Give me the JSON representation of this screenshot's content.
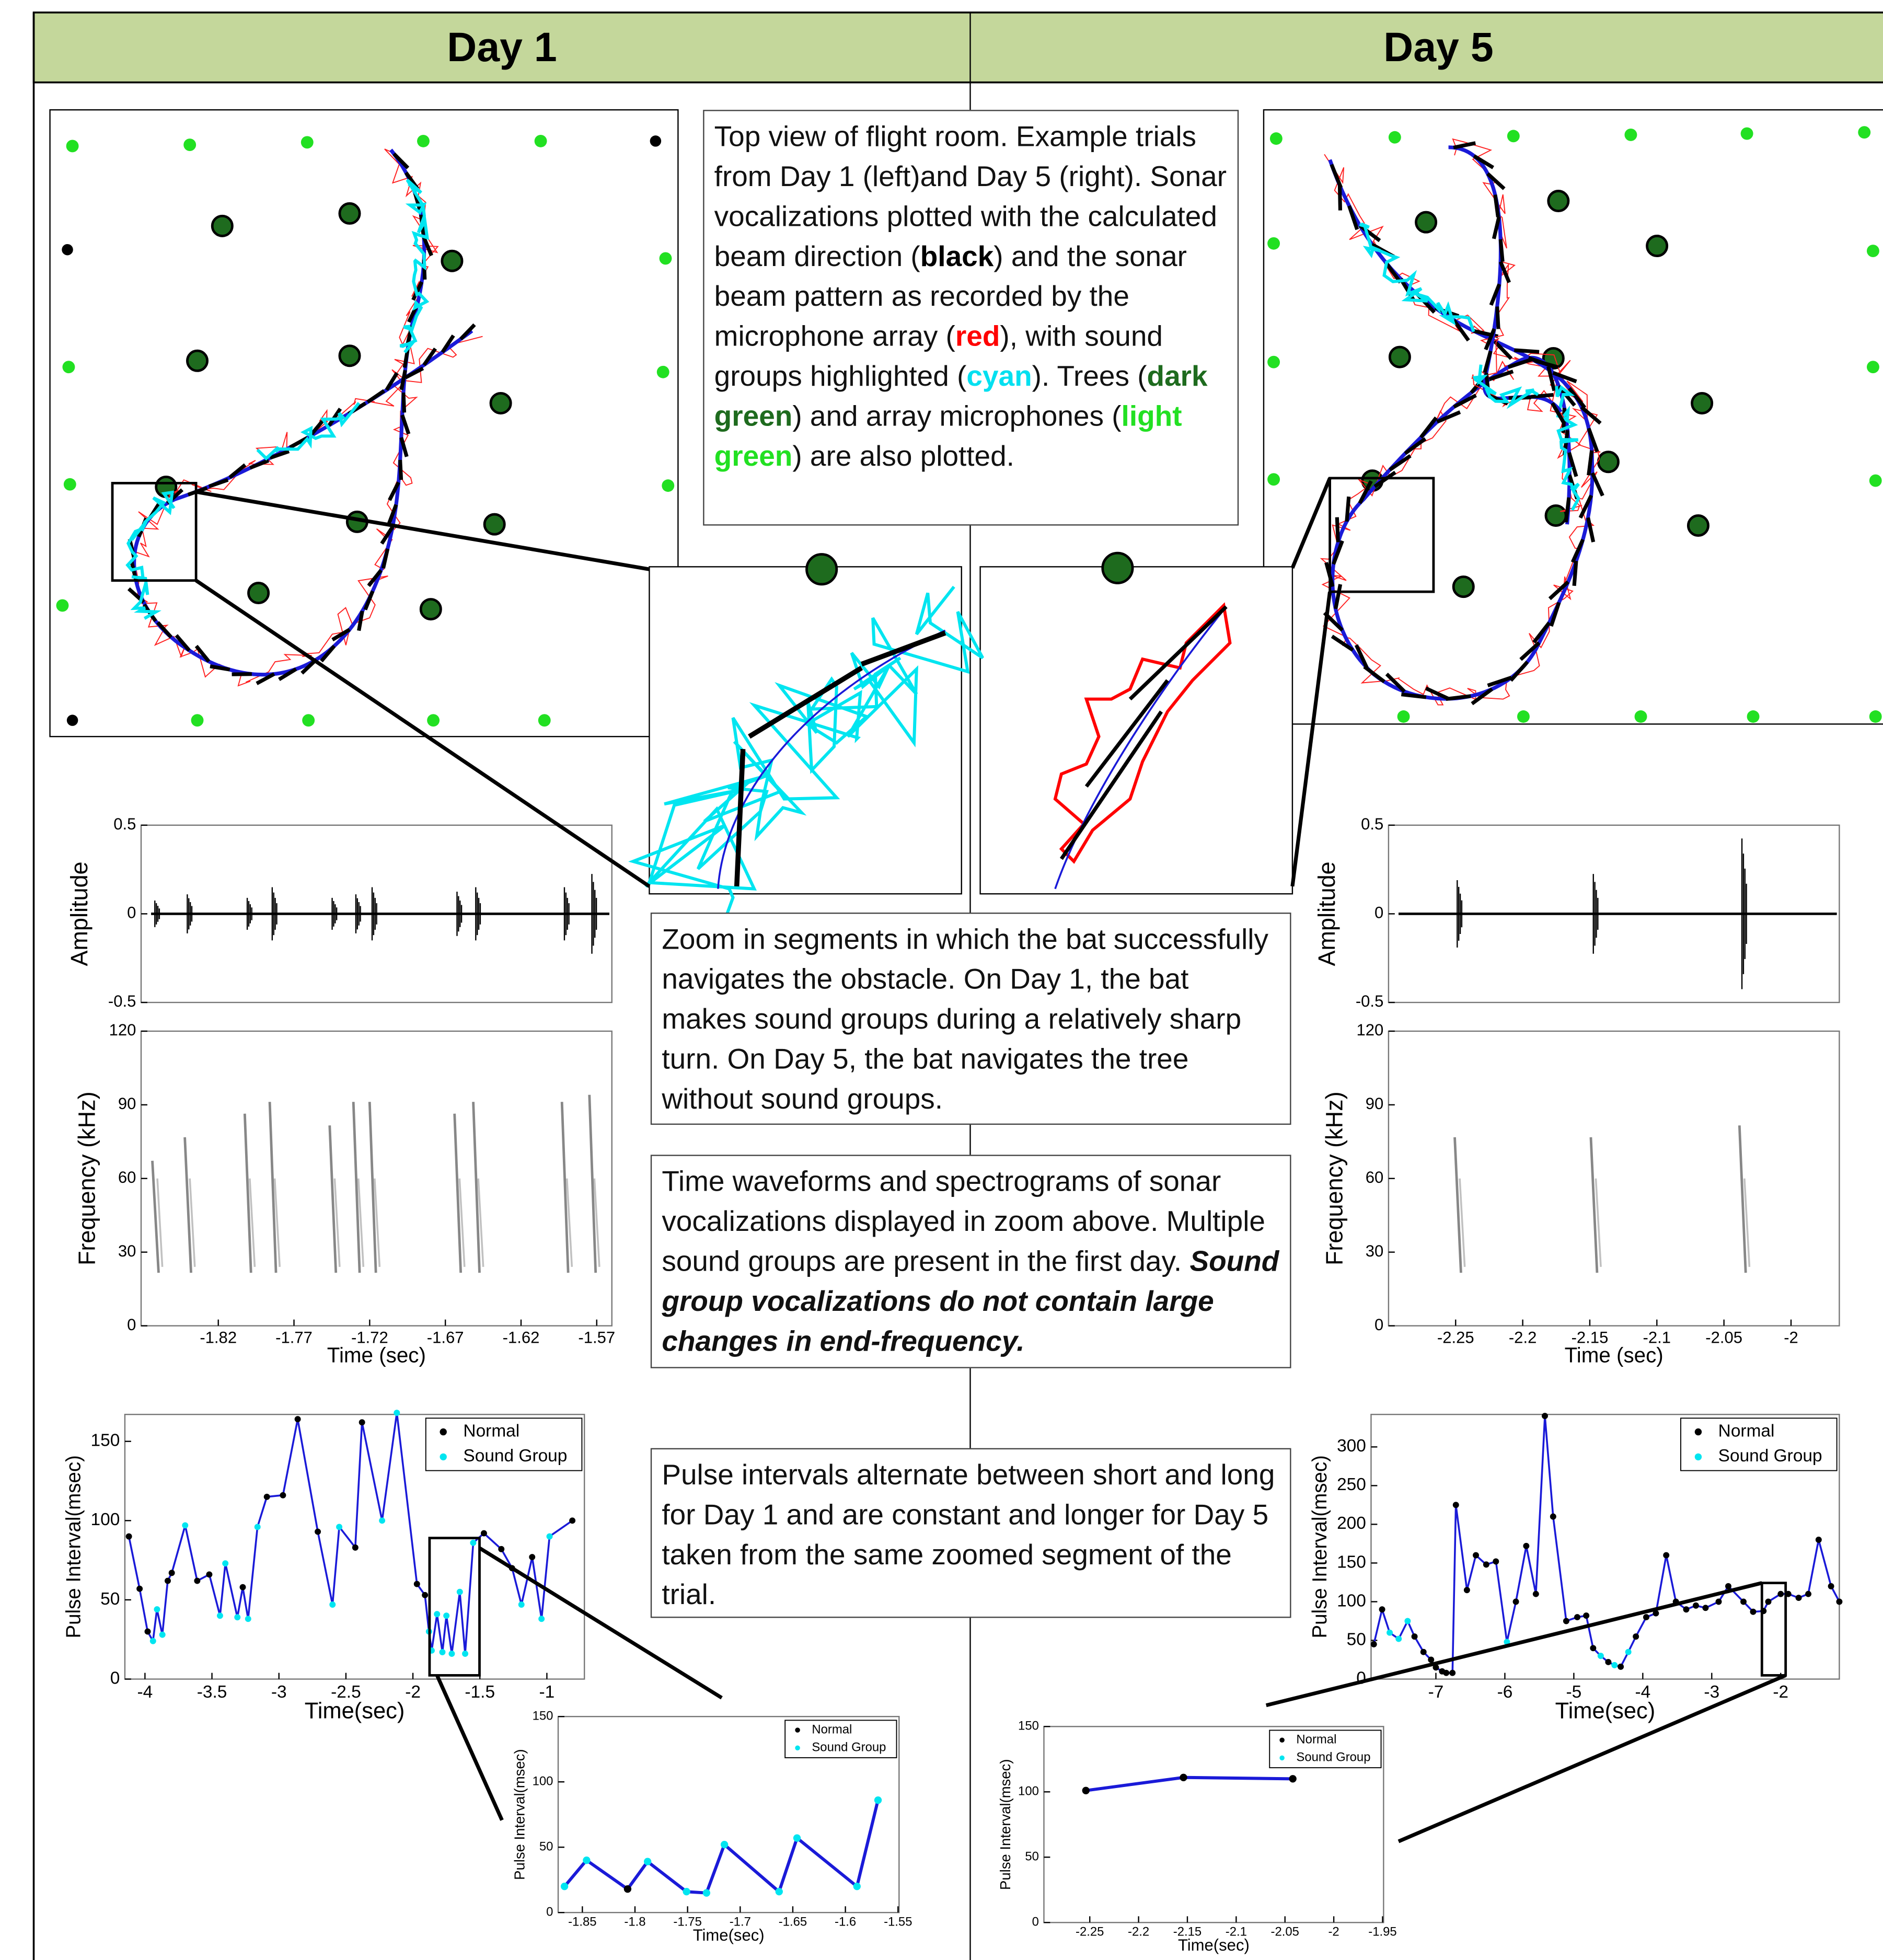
{
  "header": [
    "Day 1",
    "Day 5"
  ],
  "notes": [
    [
      {
        "text": "Top view of flight room.  Example trials from Day 1 (left)and Day 5 (right).  Sonar vocalizations plotted with the calculated beam direction ("
      },
      {
        "text": "black",
        "bold": true,
        "color": "#000000"
      },
      {
        "text": ") and the sonar beam pattern as recorded by the microphone array ("
      },
      {
        "text": "red",
        "bold": true,
        "color": "#ff0000"
      },
      {
        "text": "), with sound groups highlighted ("
      },
      {
        "text": "cyan",
        "bold": true,
        "color": "#00e0f0"
      },
      {
        "text": ").  Trees ("
      },
      {
        "text": "dark green",
        "bold": true,
        "color": "#1e6b1e"
      },
      {
        "text": ") and array microphones ("
      },
      {
        "text": "light green",
        "bold": true,
        "color": "#22e022"
      },
      {
        "text": ") are also plotted."
      }
    ],
    [
      {
        "text": "Zoom in segments in which the bat successfully navigates the obstacle.  On Day 1, the bat makes sound groups during a relatively sharp turn.  On Day 5, the bat navigates the tree without sound groups."
      }
    ],
    [
      {
        "text": "Time waveforms and spectrograms of sonar vocalizations displayed in zoom above. Multiple sound groups are present in the first day.  "
      },
      {
        "text": "Sound group vocalizations do not contain large changes in end-frequency.",
        "bold": true,
        "italic": true
      }
    ],
    [
      {
        "text": "Pulse intervals alternate between short and long for Day 1 and are constant and longer for Day 5 taken from the same zoomed segment of the trial."
      }
    ]
  ],
  "chart_data": [
    {
      "type": "waveform",
      "ylabel": "Amplitude",
      "ylim": [
        -0.5,
        0.5
      ],
      "yticks": [
        -0.5,
        0,
        0.5
      ]
    },
    {
      "type": "spectrogram",
      "xlabel": "Time (sec)",
      "ylabel": "Frequency (kHz)",
      "xlim": [
        -1.871,
        -1.56
      ],
      "xticks": [
        -1.82,
        -1.77,
        -1.72,
        -1.67,
        -1.62,
        -1.57
      ],
      "ylim": [
        0,
        120
      ],
      "yticks": [
        0,
        30,
        60,
        90,
        120
      ]
    },
    {
      "type": "line",
      "xlabel": "Time(sec)",
      "ylabel": "Pulse Interval(msec)",
      "xlim": [
        -4.15,
        -0.72
      ],
      "xticks": [
        -4,
        -3.5,
        -3,
        -2.5,
        -2,
        -1.5,
        -1
      ],
      "ylim": [
        0,
        167
      ],
      "yticks": [
        0,
        50,
        100,
        150
      ],
      "line_color": "#1a1ad8",
      "legend_loc": "upper right",
      "legend": [
        {
          "name": "Normal",
          "color": "#000000"
        },
        {
          "name": "Sound Group",
          "color": "#00e5f0"
        }
      ],
      "x": [
        -4.12,
        -4.04,
        -3.98,
        -3.94,
        -3.91,
        -3.87,
        -3.83,
        -3.8,
        -3.7,
        -3.61,
        -3.52,
        -3.44,
        -3.4,
        -3.31,
        -3.27,
        -3.23,
        -3.16,
        -3.09,
        -2.97,
        -2.86,
        -2.71,
        -2.6,
        -2.55,
        -2.43,
        -2.38,
        -2.23,
        -2.12,
        -1.97,
        -1.91,
        -1.88,
        -1.86,
        -1.82,
        -1.78,
        -1.75,
        -1.71,
        -1.65,
        -1.61,
        -1.55,
        -1.47,
        -1.34,
        -1.26,
        -1.19,
        -1.11,
        -1.04,
        -0.98,
        -0.81
      ],
      "values": [
        90,
        57,
        30,
        24,
        44,
        28,
        62,
        67,
        97,
        62,
        66,
        40,
        73,
        39,
        58,
        38,
        96,
        115,
        116,
        164,
        93,
        47,
        96,
        83,
        162,
        100,
        168,
        60,
        53,
        30,
        18,
        41,
        17,
        40,
        16,
        55,
        16,
        86,
        92,
        82,
        70,
        47,
        77,
        38,
        90,
        100
      ],
      "point_kinds": [
        0,
        0,
        0,
        1,
        1,
        1,
        0,
        0,
        1,
        0,
        0,
        1,
        1,
        1,
        0,
        1,
        1,
        0,
        0,
        0,
        0,
        1,
        1,
        0,
        0,
        1,
        1,
        0,
        0,
        1,
        1,
        1,
        1,
        1,
        1,
        1,
        1,
        1,
        0,
        0,
        0,
        1,
        0,
        1,
        1,
        0
      ]
    },
    {
      "type": "line",
      "xlabel": "Time(sec)",
      "ylabel": "Pulse Interval(msec)",
      "xlim": [
        -1.873,
        -1.549
      ],
      "xticks": [
        -1.85,
        -1.8,
        -1.75,
        -1.7,
        -1.65,
        -1.6,
        -1.55
      ],
      "ylim": [
        0,
        150
      ],
      "yticks": [
        0,
        50,
        100,
        150
      ],
      "line_color": "#1a1ad8",
      "legend_loc": "upper right",
      "legend": [
        {
          "name": "Normal",
          "color": "#000000"
        },
        {
          "name": "Sound Group",
          "color": "#00e5f0"
        }
      ],
      "x": [
        -1.867,
        -1.846,
        -1.807,
        -1.788,
        -1.751,
        -1.732,
        -1.715,
        -1.663,
        -1.646,
        -1.589,
        -1.569
      ],
      "values": [
        20,
        40,
        18,
        39,
        16,
        15,
        52,
        16,
        57,
        20,
        86
      ],
      "point_kinds": [
        1,
        1,
        0,
        1,
        1,
        1,
        1,
        1,
        1,
        1,
        1
      ]
    },
    {
      "type": "waveform",
      "ylabel": "Amplitude",
      "ylim": [
        -0.5,
        0.5
      ],
      "yticks": [
        -0.5,
        0,
        0.5
      ]
    },
    {
      "type": "spectrogram",
      "xlabel": "Time (sec)",
      "ylabel": "Frequency (kHz)",
      "xlim": [
        -2.3,
        -1.964
      ],
      "xticks": [
        -2.25,
        -2.2,
        -2.15,
        -2.1,
        -2.05,
        -2
      ],
      "ylim": [
        0,
        120
      ],
      "yticks": [
        0,
        30,
        60,
        90,
        120
      ]
    },
    {
      "type": "line",
      "xlabel": "Time(sec)",
      "ylabel": "Pulse Interval(msec)",
      "xlim": [
        -7.94,
        -1.15
      ],
      "xticks": [
        -7,
        -6,
        -5,
        -4,
        -3,
        -2
      ],
      "ylim": [
        0,
        342
      ],
      "yticks": [
        0,
        50,
        100,
        150,
        200,
        250,
        300
      ],
      "line_color": "#1a1ad8",
      "legend_loc": "upper right",
      "legend": [
        {
          "name": "Normal",
          "color": "#000000"
        },
        {
          "name": "Sound Group",
          "color": "#00e5f0"
        }
      ],
      "x": [
        -7.9,
        -7.78,
        -7.67,
        -7.54,
        -7.41,
        -7.31,
        -7.18,
        -7.07,
        -7,
        -6.91,
        -6.85,
        -6.76,
        -6.71,
        -6.55,
        -6.42,
        -6.27,
        -6.13,
        -5.97,
        -5.84,
        -5.69,
        -5.55,
        -5.42,
        -5.3,
        -5.11,
        -4.95,
        -4.82,
        -4.72,
        -4.61,
        -4.5,
        -4.41,
        -4.32,
        -4.21,
        -4.1,
        -3.95,
        -3.81,
        -3.66,
        -3.52,
        -3.37,
        -3.23,
        -3.09,
        -2.9,
        -2.76,
        -2.54,
        -2.4,
        -2.25,
        -2.18,
        -2,
        -1.89,
        -1.74,
        -1.6,
        -1.45,
        -1.27,
        -1.15
      ],
      "values": [
        45,
        90,
        60,
        52,
        75,
        55,
        35,
        25,
        15,
        10,
        8,
        8,
        225,
        115,
        160,
        148,
        152,
        48,
        100,
        172,
        110,
        340,
        210,
        75,
        80,
        82,
        40,
        30,
        22,
        18,
        16,
        35,
        55,
        80,
        85,
        160,
        100,
        90,
        95,
        92,
        100,
        120,
        100,
        87,
        88,
        100,
        110,
        110,
        105,
        110,
        180,
        120,
        100
      ],
      "point_kinds": [
        0,
        0,
        1,
        1,
        1,
        0,
        0,
        0,
        0,
        0,
        0,
        0,
        0,
        0,
        0,
        0,
        0,
        1,
        0,
        0,
        0,
        0,
        0,
        0,
        0,
        0,
        0,
        1,
        0,
        1,
        0,
        1,
        0,
        0,
        0,
        0,
        0,
        0,
        0,
        0,
        0,
        0,
        0,
        0,
        0,
        0,
        0,
        0,
        0,
        0,
        0,
        0,
        0
      ]
    },
    {
      "type": "line",
      "xlabel": "Time(sec)",
      "ylabel": "Pulse Interval(msec)",
      "xlim": [
        -2.297,
        -1.949
      ],
      "xticks": [
        -2.25,
        -2.2,
        -2.15,
        -2.1,
        -2.05,
        -2,
        -1.95
      ],
      "ylim": [
        0,
        150
      ],
      "yticks": [
        0,
        50,
        100,
        150
      ],
      "line_color": "#1a1ad8",
      "legend_loc": "upper right",
      "legend": [
        {
          "name": "Normal",
          "color": "#000000"
        },
        {
          "name": "Sound Group",
          "color": "#00e5f0"
        }
      ],
      "x": [
        -2.254,
        -2.154,
        -2.042
      ],
      "values": [
        101,
        111,
        110
      ],
      "point_kinds": [
        0,
        0,
        0
      ]
    }
  ]
}
